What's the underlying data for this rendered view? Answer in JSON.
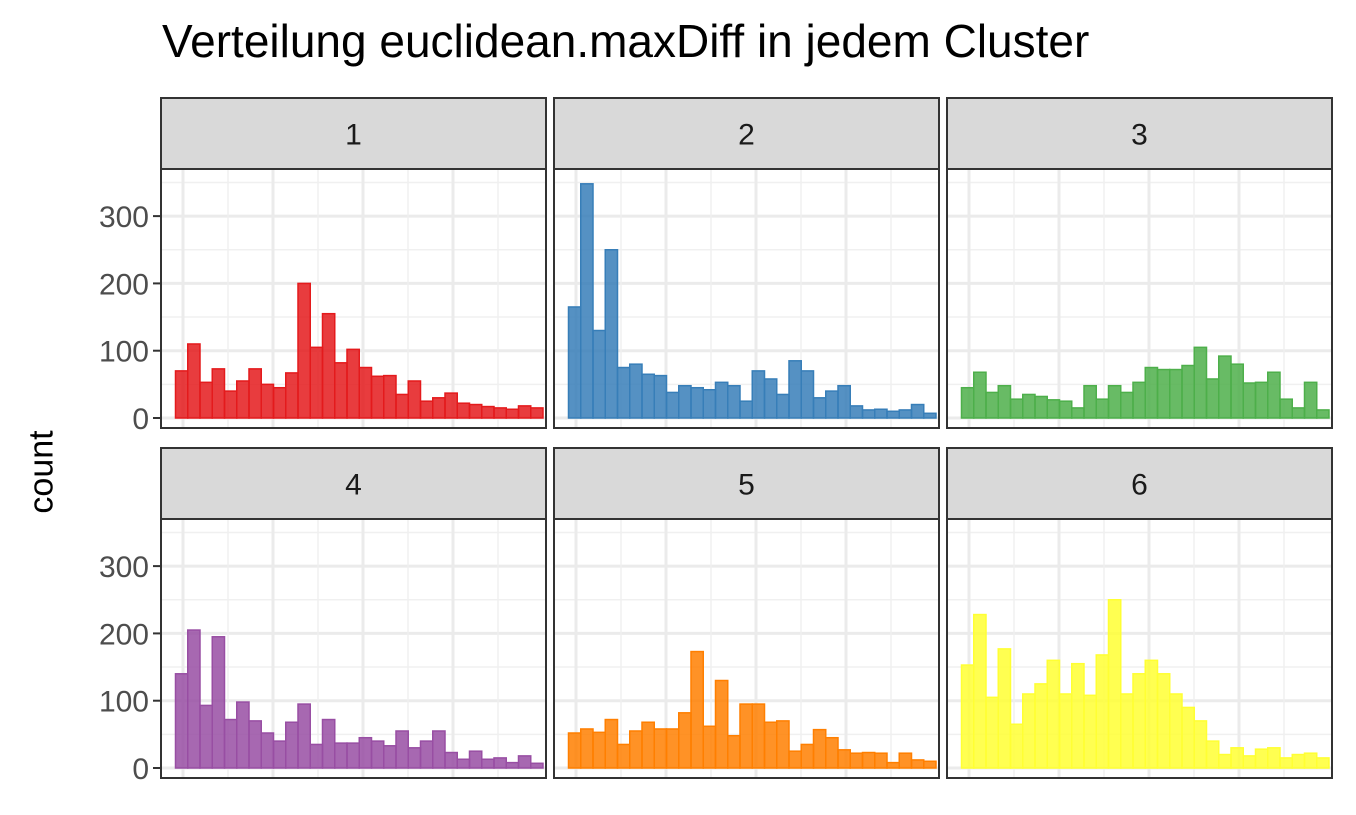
{
  "chart_data": {
    "type": "bar",
    "title": "Verteilung euclidean.maxDiff in jedem Cluster",
    "ylabel": "count",
    "ylim": [
      0,
      370
    ],
    "yticks": [
      0,
      100,
      200,
      300
    ],
    "bins": 30,
    "facets": [
      {
        "label": "1",
        "color": "#E41A1C",
        "values": [
          70,
          110,
          53,
          73,
          40,
          55,
          73,
          50,
          45,
          67,
          200,
          105,
          155,
          82,
          102,
          75,
          62,
          63,
          35,
          55,
          25,
          30,
          37,
          22,
          20,
          17,
          15,
          13,
          18,
          15
        ]
      },
      {
        "label": "2",
        "color": "#377EB8",
        "values": [
          165,
          348,
          130,
          250,
          75,
          80,
          65,
          63,
          38,
          48,
          45,
          42,
          53,
          48,
          25,
          70,
          58,
          35,
          85,
          70,
          30,
          40,
          48,
          18,
          12,
          13,
          10,
          12,
          20,
          7
        ]
      },
      {
        "label": "3",
        "color": "#4DAF4A",
        "values": [
          45,
          68,
          38,
          48,
          28,
          35,
          32,
          27,
          25,
          15,
          48,
          28,
          48,
          38,
          53,
          75,
          72,
          72,
          78,
          105,
          58,
          92,
          80,
          52,
          53,
          68,
          28,
          15,
          53,
          12
        ]
      },
      {
        "label": "4",
        "color": "#984EA3",
        "values": [
          140,
          205,
          93,
          195,
          72,
          98,
          70,
          52,
          40,
          68,
          95,
          35,
          72,
          37,
          37,
          45,
          40,
          33,
          55,
          30,
          40,
          55,
          23,
          13,
          25,
          13,
          15,
          8,
          18,
          7
        ]
      },
      {
        "label": "5",
        "color": "#FF7F00",
        "values": [
          52,
          58,
          53,
          72,
          35,
          55,
          68,
          58,
          58,
          82,
          173,
          62,
          130,
          48,
          95,
          95,
          68,
          70,
          25,
          35,
          57,
          45,
          27,
          22,
          23,
          22,
          8,
          22,
          12,
          10
        ]
      },
      {
        "label": "6",
        "color": "#FFFF33",
        "values": [
          153,
          228,
          105,
          177,
          65,
          110,
          125,
          160,
          110,
          155,
          108,
          168,
          250,
          110,
          140,
          160,
          140,
          110,
          90,
          70,
          40,
          20,
          30,
          18,
          28,
          30,
          15,
          20,
          22,
          15
        ]
      }
    ]
  }
}
